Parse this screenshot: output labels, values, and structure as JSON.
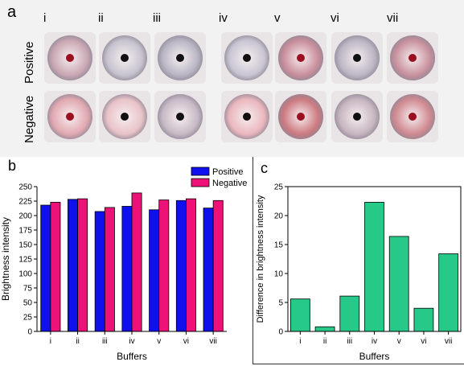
{
  "panels": {
    "a": {
      "letter": "a",
      "columns": [
        "i",
        "ii",
        "iii",
        "iv",
        "v",
        "vi",
        "vii"
      ],
      "row_labels": [
        "Positive",
        "Negative"
      ],
      "colors": {
        "positive": [
          "#c9a7b3",
          "#c7c4cf",
          "#b9b6c4",
          "#c9c6d3",
          "#c98e9b",
          "#bdb6c4",
          "#c8919d"
        ],
        "negative": [
          "#e2a9b1",
          "#e8c3c8",
          "#c8bac6",
          "#eab7bd",
          "#cc7a80",
          "#c7b6c0",
          "#d08a90"
        ]
      }
    },
    "b": {
      "letter": "b"
    },
    "c": {
      "letter": "c"
    }
  },
  "chart_data": [
    {
      "type": "bar",
      "categories": [
        "i",
        "ii",
        "iii",
        "iv",
        "v",
        "vi",
        "vii"
      ],
      "series": [
        {
          "name": "Positive",
          "color": "#1010ee",
          "values": [
            218,
            228,
            207,
            216,
            210,
            226,
            213
          ]
        },
        {
          "name": "Negative",
          "color": "#ee1177",
          "values": [
            223,
            229,
            214,
            239,
            227,
            229,
            226
          ]
        }
      ],
      "xlabel": "Buffers",
      "ylabel": "Brightness intensity",
      "ylim": [
        0,
        250
      ],
      "yticks": [
        "0",
        "25",
        "50",
        "75",
        "100",
        "125",
        "150",
        "175",
        "200",
        "225",
        "250"
      ],
      "legend": "top-right"
    },
    {
      "type": "bar",
      "categories": [
        "i",
        "ii",
        "iii",
        "iv",
        "v",
        "vi",
        "vii"
      ],
      "values": [
        5.6,
        0.8,
        6.1,
        22.3,
        16.4,
        4.0,
        13.4
      ],
      "color": "#26c987",
      "xlabel": "Buffers",
      "ylabel": "Difference in brightness intensity",
      "ylim": [
        0,
        25
      ],
      "yticks": [
        "0",
        "5",
        "10",
        "15",
        "20",
        "25"
      ]
    }
  ]
}
